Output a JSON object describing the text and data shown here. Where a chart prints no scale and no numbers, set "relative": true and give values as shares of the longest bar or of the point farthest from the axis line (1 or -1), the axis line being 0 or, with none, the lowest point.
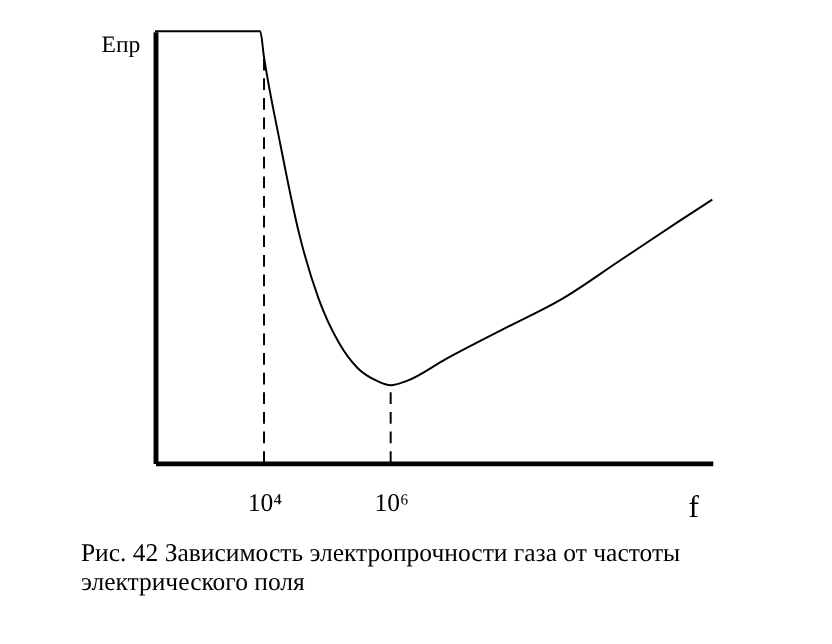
{
  "chart_data": {
    "type": "line",
    "relative": true,
    "log": "x",
    "xlabel": "f",
    "ylabel": "Епр",
    "x": [
      190,
      8700,
      10000,
      18000,
      36000,
      73000,
      150000,
      300000,
      610000,
      1000000,
      1800000,
      7300000,
      60000000,
      510000000,
      4300000000,
      36000000000,
      120000000000
    ],
    "series": [
      {
        "color": "#000000",
        "values": [
          1,
          1,
          0.94,
          0.74,
          0.53,
          0.38,
          0.28,
          0.22,
          0.19,
          0.18,
          0.19,
          0.24,
          0.31,
          0.38,
          0.47,
          0.56,
          0.61
        ]
      }
    ],
    "xlim": [
      190,
      120000000000
    ],
    "xticks": [
      {
        "value": 10000,
        "label": "10⁴"
      },
      {
        "value": 1000000,
        "label": "10⁶"
      }
    ],
    "ref_lines": [
      {
        "axis": "x",
        "value": 10000,
        "line_style": "dashed",
        "color": "#000000"
      },
      {
        "axis": "x",
        "value": 1000000,
        "line_style": "dashed",
        "color": "#000000"
      }
    ],
    "grid": false,
    "marker": "none",
    "line_style": "solid",
    "annotations": [
      "Рис. 42 Зависимость электропрочности газа от частоты электрического поля"
    ]
  }
}
